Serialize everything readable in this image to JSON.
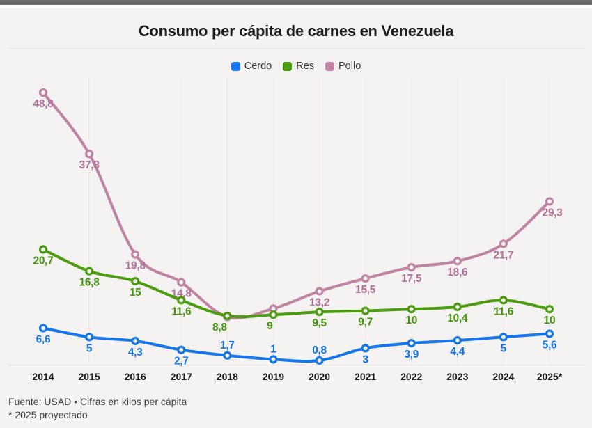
{
  "header": {
    "title": "Consumo per cápita de carnes en Venezuela"
  },
  "chart_data": {
    "type": "line",
    "title": "Consumo per cápita de carnes en Venezuela",
    "x": [
      "2014",
      "2015",
      "2016",
      "2017",
      "2018",
      "2019",
      "2020",
      "2021",
      "2022",
      "2023",
      "2024",
      "2025*"
    ],
    "ylim": [
      0,
      52
    ],
    "grid": "vertical-only",
    "legend_position": "top-center",
    "unit": "kilos per cápita",
    "series": [
      {
        "name": "Cerdo",
        "color": "#1576ec",
        "label_color": "#1273e8",
        "values": [
          6.6,
          5,
          4.3,
          2.7,
          1.7,
          1,
          0.8,
          3,
          3.9,
          4.4,
          5,
          5.6
        ],
        "labels": [
          "6,6",
          "5",
          "4,3",
          "2,7",
          "1,7",
          "1",
          "0,8",
          "3",
          "3,9",
          "4,4",
          "5",
          "5,6"
        ],
        "label_side": [
          "b",
          "b",
          "b",
          "b",
          "a",
          "a",
          "a",
          "b",
          "b",
          "b",
          "b",
          "b"
        ],
        "label_dx": [
          0,
          0,
          0,
          0,
          0,
          0,
          0,
          0,
          0,
          0,
          0,
          0
        ]
      },
      {
        "name": "Res",
        "color": "#4c9c10",
        "label_color": "#459410",
        "values": [
          20.7,
          16.8,
          15,
          11.6,
          8.8,
          9,
          9.5,
          9.7,
          10,
          10.4,
          11.6,
          10
        ],
        "labels": [
          "20,7",
          "16,8",
          "15",
          "11,6",
          "8,8",
          "9",
          "9,5",
          "9,7",
          "10",
          "10,4",
          "11,6",
          "10"
        ],
        "label_side": [
          "b",
          "b",
          "b",
          "b",
          "b",
          "b",
          "b",
          "b",
          "b",
          "b",
          "b",
          "b"
        ],
        "label_dx": [
          0,
          0,
          0,
          0,
          -11,
          -5,
          0,
          0,
          0,
          0,
          0,
          0
        ]
      },
      {
        "name": "Pollo",
        "color": "#c084a2",
        "label_color": "#b3719a",
        "values": [
          48.8,
          37.8,
          19.8,
          14.8,
          8.6,
          10.1,
          13.2,
          15.5,
          17.5,
          18.6,
          21.7,
          29.3
        ],
        "labels": [
          "48,8",
          "37,8",
          "19,8",
          "14,8",
          "",
          "",
          "13,2",
          "15,5",
          "17,5",
          "18,6",
          "21,7",
          "29,3"
        ],
        "label_side": [
          "b",
          "b",
          "b",
          "b",
          "b",
          "b",
          "b",
          "b",
          "b",
          "b",
          "b",
          "b"
        ],
        "label_dx": [
          0,
          0,
          0,
          0,
          0,
          0,
          0,
          0,
          0,
          0,
          0,
          4
        ]
      }
    ]
  },
  "footer": {
    "source": "Fuente: USAD • Cifras en kilos per cápita",
    "note": "* 2025 proyectado"
  }
}
